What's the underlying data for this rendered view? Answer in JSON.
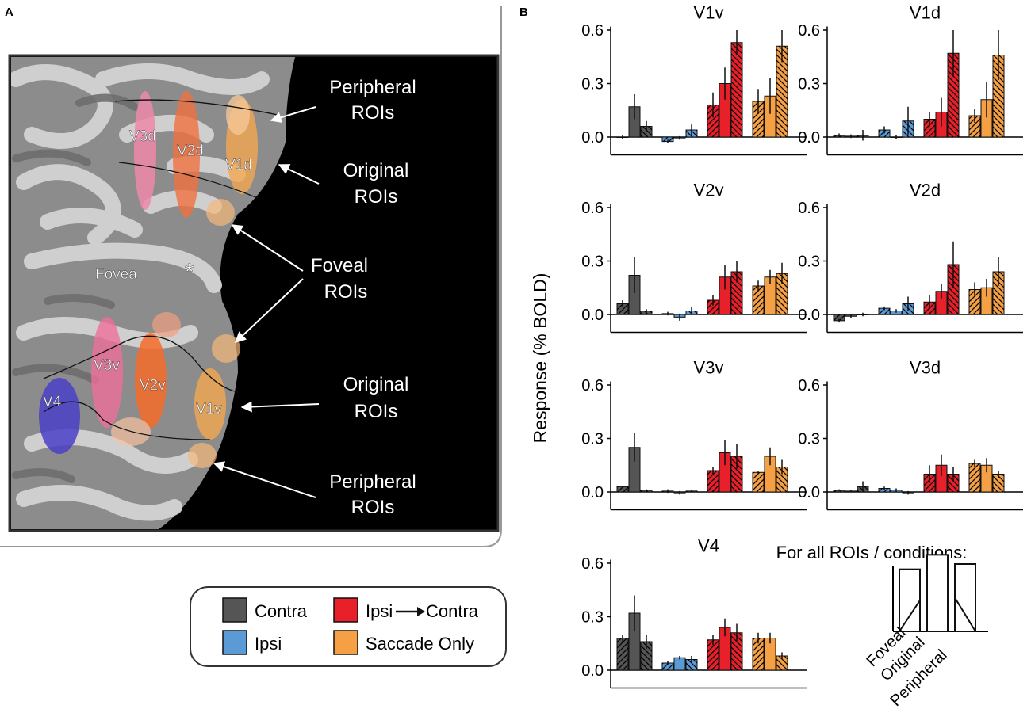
{
  "panel_labels": {
    "a": "A",
    "b": "B"
  },
  "brain_labels": {
    "v3d": "V3d",
    "v2d": "V2d",
    "v1d": "V1d",
    "fovea": "Fovea",
    "fovea_marker": "*",
    "v3v": "V3v",
    "v2v": "V2v",
    "v1v": "V1v",
    "v4": "V4"
  },
  "annotations": {
    "peripheral_top": [
      "Peripheral",
      "ROIs"
    ],
    "original_top": [
      "Original",
      "ROIs"
    ],
    "foveal": [
      "Foveal",
      "ROIs"
    ],
    "original_bottom": [
      "Original",
      "ROIs"
    ],
    "peripheral_bottom": [
      "Peripheral",
      "ROIs"
    ]
  },
  "legend": {
    "items": [
      {
        "label": "Contra",
        "color": "#555555"
      },
      {
        "label": "Ipsi",
        "color": "#5b9bd5"
      },
      {
        "label": "Ipsi",
        "arrow_to": "Contra",
        "color": "#e8202a"
      },
      {
        "label": "Saccade Only",
        "color": "#f5a044"
      }
    ]
  },
  "schema": {
    "title": "For all ROIs / conditions:",
    "categories": [
      "Foveal",
      "Original",
      "Peripheral"
    ],
    "values": [
      0.47,
      0.58,
      0.51
    ]
  },
  "colors": {
    "contra": "#555555",
    "ipsi": "#5b9bd5",
    "ipsi_contra": "#e8202a",
    "saccade": "#f5a044",
    "background_black": "#000000"
  },
  "chart_data": {
    "type": "bar",
    "ylabel": "Response (% BOLD)",
    "yticks": [
      0.0,
      0.3,
      0.6
    ],
    "ytick_labels": [
      "0.0",
      "0.3",
      "0.6"
    ],
    "ylim": [
      -0.1,
      0.62
    ],
    "conditions": [
      "Contra",
      "Ipsi",
      "Ipsi→Contra",
      "Saccade Only"
    ],
    "roi_order": [
      "Foveal",
      "Original",
      "Peripheral"
    ],
    "panels": [
      {
        "title": "V1v",
        "values": [
          [
            0.0,
            0.17,
            0.06
          ],
          [
            -0.025,
            -0.005,
            0.04
          ],
          [
            0.18,
            0.3,
            0.53
          ],
          [
            0.2,
            0.23,
            0.51
          ]
        ],
        "errors": [
          [
            0.01,
            0.07,
            0.03
          ],
          [
            0.01,
            0.01,
            0.03
          ],
          [
            0.07,
            0.09,
            0.07
          ],
          [
            0.07,
            0.1,
            0.09
          ]
        ]
      },
      {
        "title": "V1d",
        "values": [
          [
            0.01,
            0.005,
            0.01
          ],
          [
            0.04,
            0.0,
            0.09
          ],
          [
            0.1,
            0.14,
            0.47
          ],
          [
            0.12,
            0.21,
            0.46
          ]
        ],
        "errors": [
          [
            0.01,
            0.01,
            0.03
          ],
          [
            0.02,
            0.01,
            0.08
          ],
          [
            0.04,
            0.08,
            0.13
          ],
          [
            0.04,
            0.1,
            0.14
          ]
        ]
      },
      {
        "title": "V2v",
        "values": [
          [
            0.06,
            0.22,
            0.02
          ],
          [
            0.005,
            -0.015,
            0.02
          ],
          [
            0.08,
            0.21,
            0.24
          ],
          [
            0.16,
            0.21,
            0.23
          ]
        ],
        "errors": [
          [
            0.02,
            0.1,
            0.01
          ],
          [
            0.01,
            0.02,
            0.02
          ],
          [
            0.03,
            0.07,
            0.06
          ],
          [
            0.03,
            0.04,
            0.06
          ]
        ]
      },
      {
        "title": "V2d",
        "values": [
          [
            -0.035,
            -0.01,
            0.0
          ],
          [
            0.035,
            0.02,
            0.06
          ],
          [
            0.07,
            0.13,
            0.28
          ],
          [
            0.14,
            0.15,
            0.24
          ]
        ],
        "errors": [
          [
            0.01,
            0.01,
            0.01
          ],
          [
            0.01,
            0.01,
            0.04
          ],
          [
            0.04,
            0.04,
            0.13
          ],
          [
            0.04,
            0.05,
            0.08
          ]
        ]
      },
      {
        "title": "V3v",
        "values": [
          [
            0.03,
            0.25,
            0.01
          ],
          [
            0.005,
            -0.005,
            0.005
          ],
          [
            0.12,
            0.22,
            0.2
          ],
          [
            0.11,
            0.2,
            0.14
          ]
        ],
        "errors": [
          [
            0.005,
            0.08,
            0.005
          ],
          [
            0.01,
            0.01,
            0.005
          ],
          [
            0.02,
            0.07,
            0.07
          ],
          [
            0.005,
            0.05,
            0.04
          ]
        ]
      },
      {
        "title": "V3d",
        "values": [
          [
            0.01,
            0.005,
            0.03
          ],
          [
            0.02,
            0.01,
            -0.005
          ],
          [
            0.1,
            0.15,
            0.1
          ],
          [
            0.16,
            0.15,
            0.1
          ]
        ],
        "errors": [
          [
            0.005,
            0.005,
            0.03
          ],
          [
            0.01,
            0.01,
            0.01
          ],
          [
            0.05,
            0.06,
            0.04
          ],
          [
            0.02,
            0.04,
            0.02
          ]
        ]
      },
      {
        "title": "V4",
        "values": [
          [
            0.18,
            0.32,
            0.16
          ],
          [
            0.04,
            0.07,
            0.06
          ],
          [
            0.17,
            0.24,
            0.21
          ],
          [
            0.18,
            0.18,
            0.08
          ]
        ],
        "errors": [
          [
            0.02,
            0.1,
            0.04
          ],
          [
            0.01,
            0.01,
            0.02
          ],
          [
            0.03,
            0.05,
            0.05
          ],
          [
            0.03,
            0.03,
            0.02
          ]
        ]
      }
    ]
  }
}
